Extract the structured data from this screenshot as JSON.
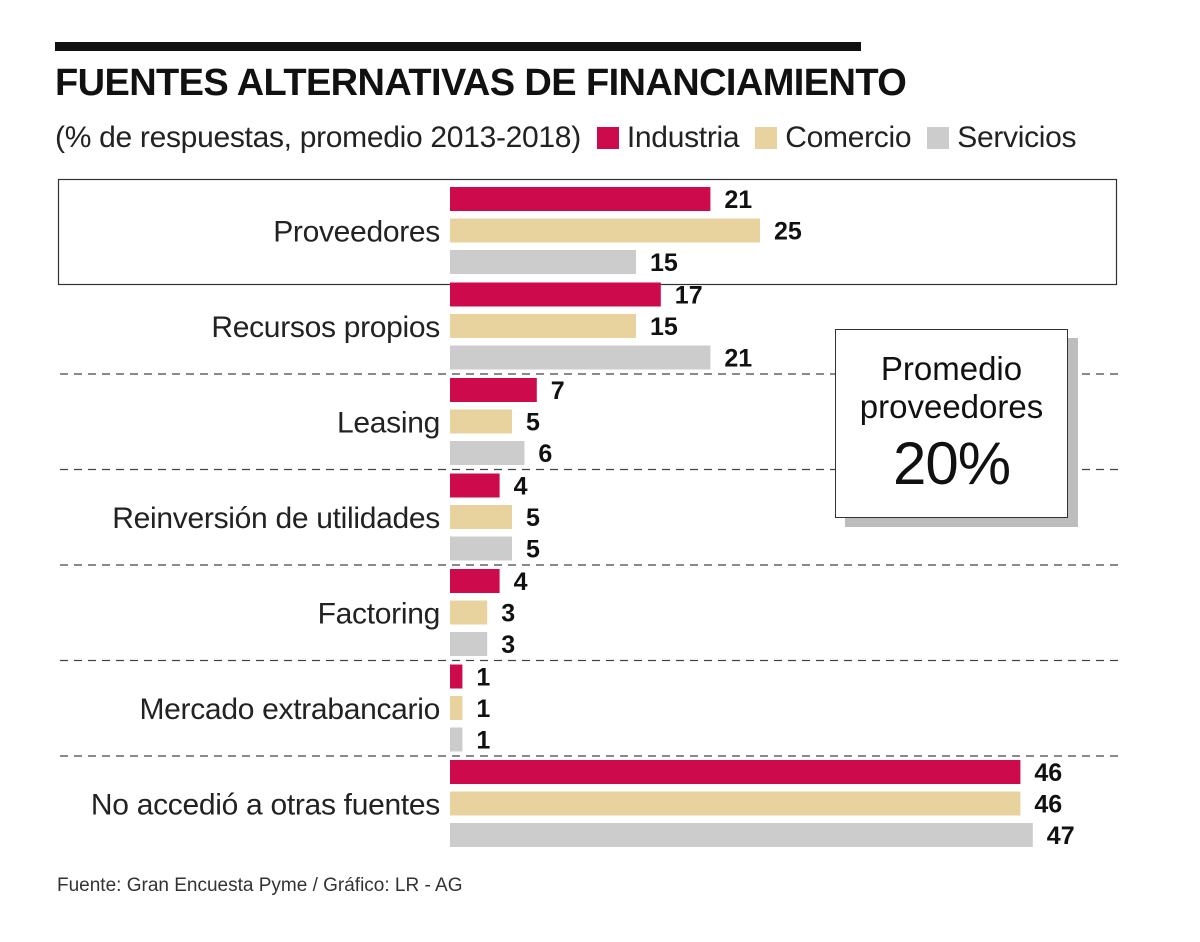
{
  "title": "FUENTES ALTERNATIVAS DE FINANCIAMIENTO",
  "subtitle": "(% de respuestas, promedio 2013-2018)",
  "legend": [
    {
      "label": "Industria",
      "color": "#cc0a4c"
    },
    {
      "label": "Comercio",
      "color": "#e8d39e"
    },
    {
      "label": "Servicios",
      "color": "#cccccc"
    }
  ],
  "callout": {
    "line1": "Promedio",
    "line2": "proveedores",
    "value": "20%"
  },
  "source": "Fuente: Gran Encuesta Pyme / Gráfico: LR - AG",
  "chart_data": {
    "type": "bar",
    "orientation": "horizontal",
    "title": "FUENTES ALTERNATIVAS DE FINANCIAMIENTO",
    "unit": "% de respuestas, promedio 2013-2018",
    "categories": [
      "Proveedores",
      "Recursos propios",
      "Leasing",
      "Reinversión de utilidades",
      "Factoring",
      "Mercado extrabancario",
      "No accedió a otras fuentes"
    ],
    "highlight_category": "Proveedores",
    "series": [
      {
        "name": "Industria",
        "color": "#cc0a4c",
        "values": [
          21,
          17,
          7,
          4,
          4,
          1,
          46
        ]
      },
      {
        "name": "Comercio",
        "color": "#e8d39e",
        "values": [
          25,
          15,
          5,
          5,
          3,
          1,
          46
        ]
      },
      {
        "name": "Servicios",
        "color": "#cccccc",
        "values": [
          15,
          21,
          6,
          5,
          3,
          1,
          47
        ]
      }
    ],
    "xlim": [
      0,
      47
    ],
    "grid": false
  }
}
